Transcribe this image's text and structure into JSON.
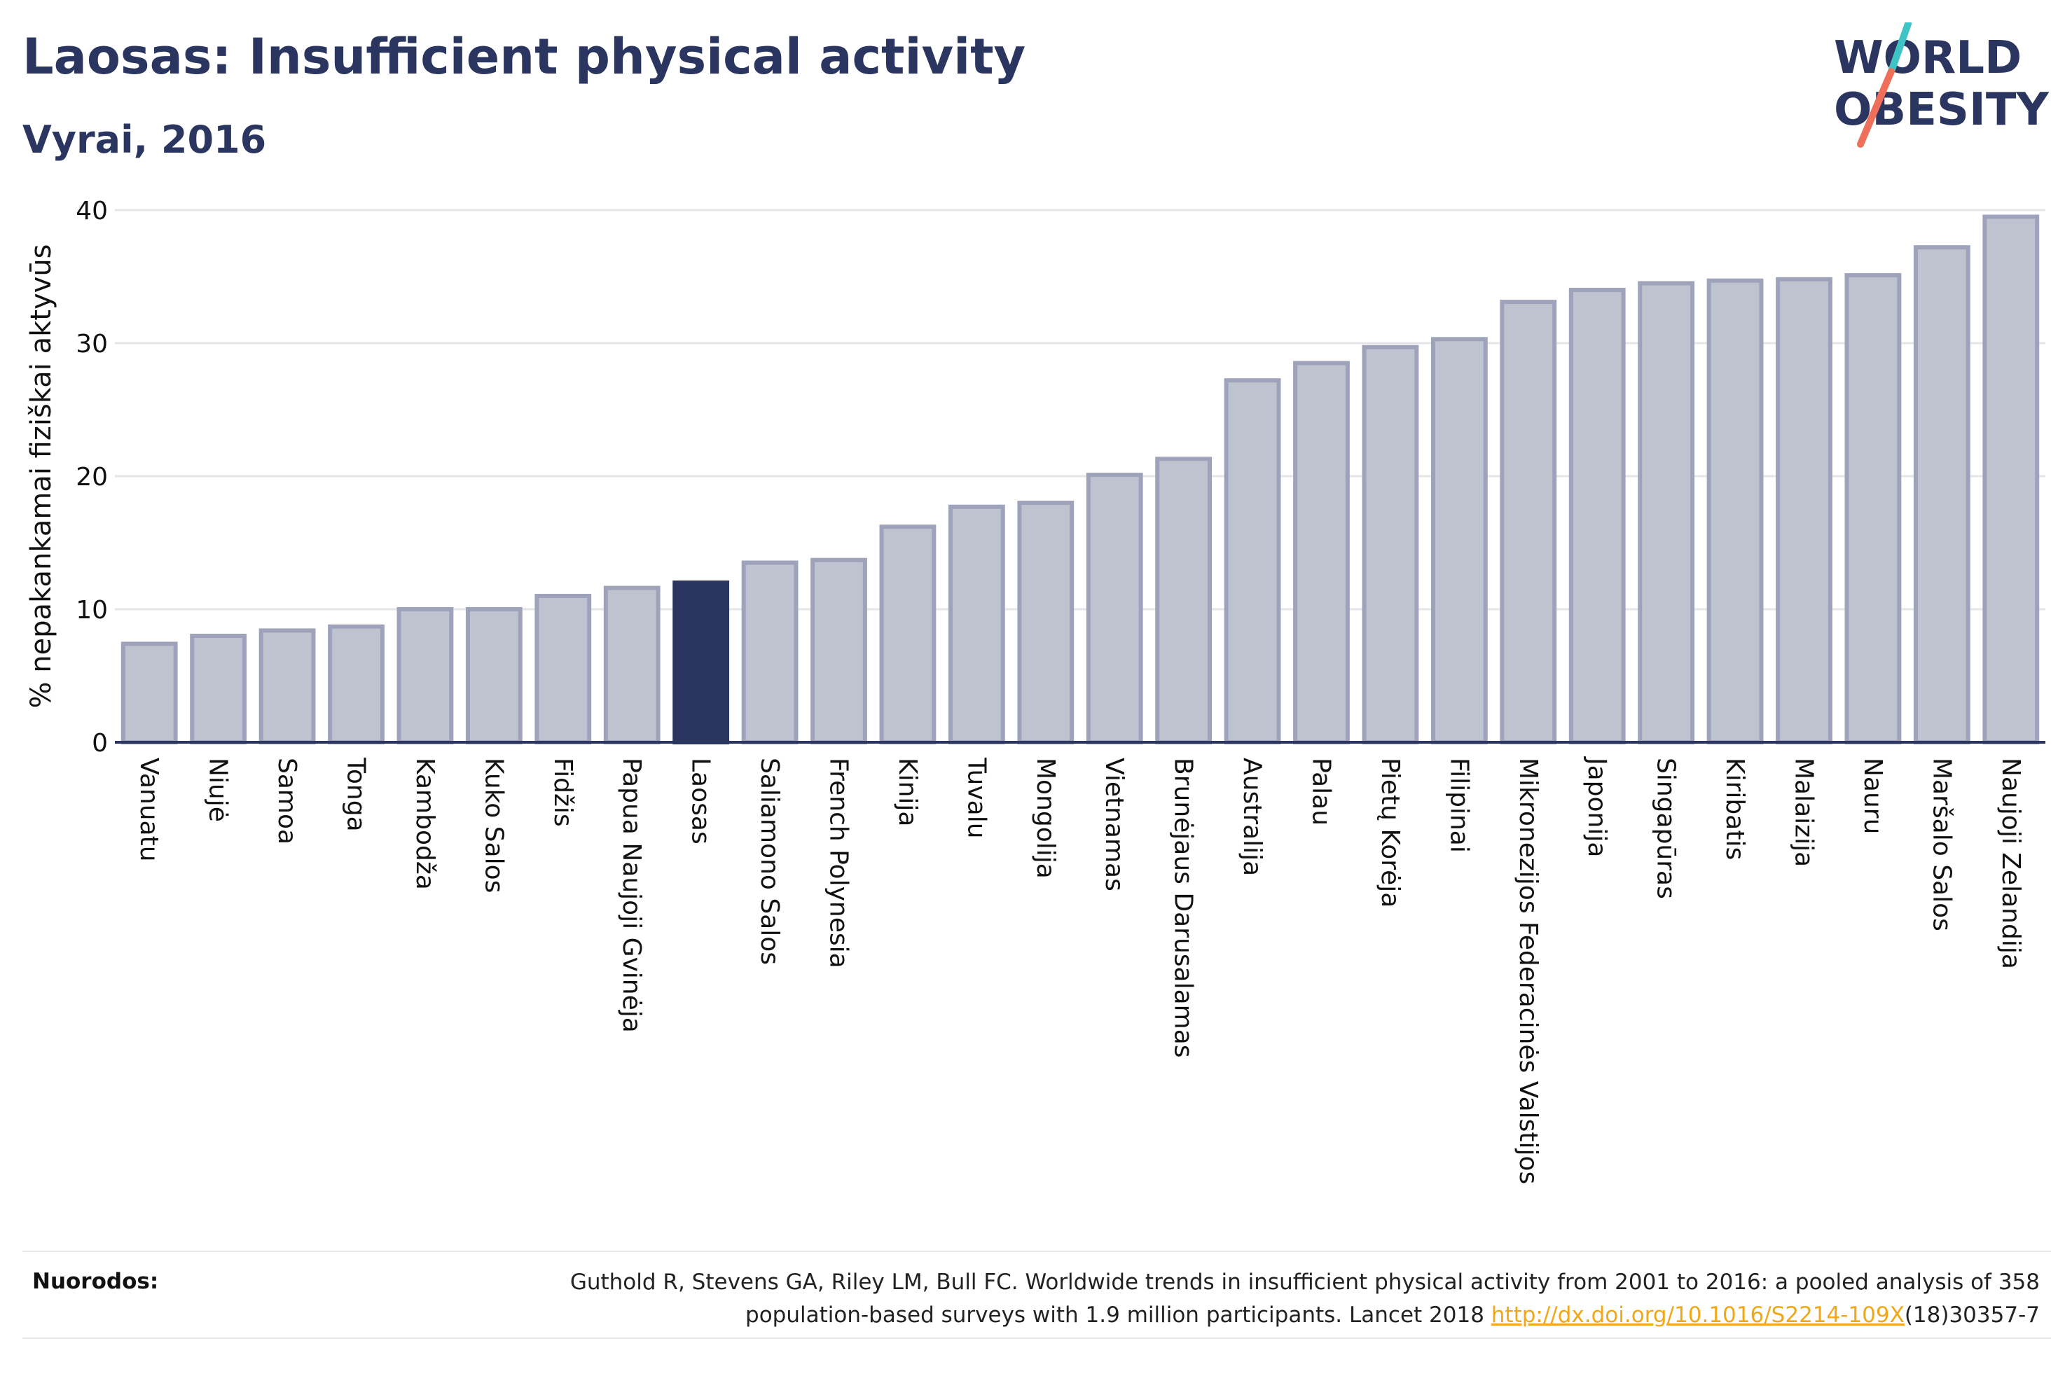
{
  "header": {
    "title": "Laosas: Insufficient physical activity",
    "subtitle": "Vyrai, 2016"
  },
  "logo": {
    "line1": "WORLD",
    "line2": "OBESITY",
    "text_color": "#2a3560",
    "slash_color_top": "#3ec4c4",
    "slash_color_bottom": "#ee6f5a"
  },
  "chart_data": {
    "type": "bar",
    "ylabel": "% nepakankamai fiziškai aktyvūs",
    "xlabel": "",
    "ylim": [
      0,
      40
    ],
    "yticks": [
      0,
      10,
      20,
      30,
      40
    ],
    "grid": true,
    "highlight": "Laosas",
    "colors": {
      "bar": "#bfc2cf",
      "bar_border": "#9ea3bb",
      "highlight": "#2a3560",
      "axis": "#2a3560",
      "grid": "#e6e6ea"
    },
    "categories": [
      "Vanuatu",
      "Niujė",
      "Samoa",
      "Tonga",
      "Kambodža",
      "Kuko Salos",
      "Fidžis",
      "Papua Naujoji Gvinėja",
      "Laosas",
      "Saliamono Salos",
      "French Polynesia",
      "Kinija",
      "Tuvalu",
      "Mongolija",
      "Vietnamas",
      "Brunėjaus Darusalamas",
      "Australija",
      "Palau",
      "Pietų Korėja",
      "Filipinai",
      "Mikronezijos Federacinės Valstijos",
      "Japonija",
      "Singapūras",
      "Kiribatis",
      "Malaizija",
      "Nauru",
      "Maršalo Salos",
      "Naujoji Zelandija"
    ],
    "values": [
      7.4,
      8.0,
      8.4,
      8.7,
      10.0,
      10.0,
      11.0,
      11.6,
      12.0,
      13.5,
      13.7,
      16.2,
      17.7,
      18.0,
      20.1,
      21.3,
      27.2,
      28.5,
      29.7,
      30.3,
      33.1,
      34.0,
      34.5,
      34.7,
      34.8,
      35.1,
      37.2,
      39.5
    ]
  },
  "footer": {
    "label": "Nuorodos:",
    "ref_line1": "Guthold R, Stevens GA, Riley LM, Bull FC. Worldwide trends in insufficient physical activity from 2001 to 2016: a pooled analysis of 358",
    "ref_line2_pre": "population-based surveys with 1.9 million participants. Lancet 2018 ",
    "ref_link": "http://dx.doi.org/10.1016/S2214-109X",
    "ref_line2_post": "(18)30357-7"
  }
}
